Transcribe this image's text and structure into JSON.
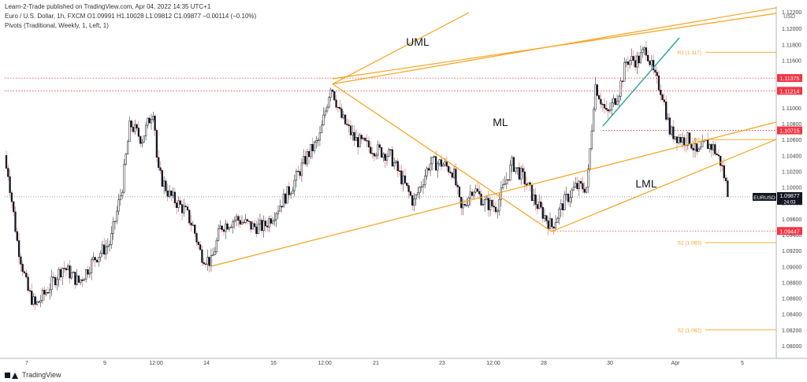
{
  "header": {
    "line1": "Learn-2-Trade published on TradingView.com, Apr 04, 2022 14:35 UTC+1",
    "line2": "Euro / U.S. Dollar, 1h, FXCM  O1.09991 H1.10028 L1.09812 C1.09877 −0.00114 (−0.10%)",
    "line3": "Pivots (Traditional, Weekly, 1, Left, 1)"
  },
  "footer": {
    "brand": "TradingView"
  },
  "chart_data": {
    "type": "candlestick",
    "instrument": "EURUSD",
    "timeframe": "1h",
    "currency_label": "USD",
    "ylim": [
      1.08,
      1.122
    ],
    "x_ticks": [
      "7",
      "9",
      "12:00",
      "14",
      "16",
      "12:00",
      "21",
      "23",
      "12:00",
      "28",
      "30",
      "Apr",
      "5"
    ],
    "y_ticks": [
      1.122,
      1.12,
      1.118,
      1.116,
      1.114,
      1.112,
      1.11,
      1.108,
      1.106,
      1.104,
      1.102,
      1.1,
      1.098,
      1.096,
      1.094,
      1.092,
      1.09,
      1.088,
      1.086,
      1.084,
      1.082,
      1.08
    ],
    "y_tick_labels": [
      "1.12200",
      "1.12000",
      "1.11800",
      "1.11600",
      "1.11400",
      "1.11200",
      "1.11000",
      "1.10800",
      "1.10600",
      "1.10400",
      "1.10200",
      "1.10000",
      "1.09800",
      "1.09600",
      "1.09400",
      "1.09200",
      "1.09000",
      "1.08800",
      "1.08600",
      "1.08400",
      "1.08200",
      "1.08000"
    ],
    "price_label": {
      "value": 1.09877,
      "text": "1.09877",
      "tag": "EURUSD",
      "countdown": "24:03"
    },
    "levels": [
      {
        "value": 1.11375,
        "text": "1.11375"
      },
      {
        "value": 1.11214,
        "text": "1.11214"
      },
      {
        "value": 1.10715,
        "text": "1.10715"
      },
      {
        "value": 1.09447,
        "text": "1.09447"
      }
    ],
    "pivots": [
      {
        "label": "R1 (1.117)",
        "value": 1.117
      },
      {
        "label": "(1.106)",
        "value": 1.106
      },
      {
        "label": "S1 (1.093)",
        "value": 1.093
      },
      {
        "label": "S2 (1.082)",
        "value": 1.082
      }
    ],
    "annotations": [
      {
        "text": "UML"
      },
      {
        "text": "ML"
      },
      {
        "text": "LML"
      }
    ],
    "price_anchors": [
      [
        0,
        1.104
      ],
      [
        10,
        1.102
      ],
      [
        22,
        1.093
      ],
      [
        35,
        1.087
      ],
      [
        45,
        1.085
      ],
      [
        60,
        1.087
      ],
      [
        80,
        1.09
      ],
      [
        100,
        1.088
      ],
      [
        120,
        1.091
      ],
      [
        140,
        1.093
      ],
      [
        155,
        1.1
      ],
      [
        165,
        1.108
      ],
      [
        180,
        1.106
      ],
      [
        195,
        1.11
      ],
      [
        200,
        1.102
      ],
      [
        215,
        1.099
      ],
      [
        235,
        1.097
      ],
      [
        245,
        1.095
      ],
      [
        255,
        1.0915
      ],
      [
        268,
        1.0905
      ],
      [
        280,
        1.095
      ],
      [
        300,
        1.096
      ],
      [
        320,
        1.095
      ],
      [
        335,
        1.095
      ],
      [
        350,
        1.097
      ],
      [
        370,
        1.1
      ],
      [
        390,
        1.104
      ],
      [
        405,
        1.106
      ],
      [
        420,
        1.113
      ],
      [
        432,
        1.109
      ],
      [
        450,
        1.106
      ],
      [
        470,
        1.105
      ],
      [
        495,
        1.104
      ],
      [
        510,
        1.101
      ],
      [
        525,
        1.098
      ],
      [
        545,
        1.103
      ],
      [
        560,
        1.103
      ],
      [
        575,
        1.102
      ],
      [
        585,
        1.097
      ],
      [
        600,
        1.1
      ],
      [
        615,
        1.098
      ],
      [
        630,
        1.0975
      ],
      [
        650,
        1.103
      ],
      [
        665,
        1.101
      ],
      [
        680,
        1.098
      ],
      [
        700,
        1.095
      ],
      [
        715,
        1.098
      ],
      [
        730,
        1.1
      ],
      [
        745,
        1.1
      ],
      [
        755,
        1.113
      ],
      [
        770,
        1.109
      ],
      [
        785,
        1.112
      ],
      [
        795,
        1.116
      ],
      [
        810,
        1.116
      ],
      [
        820,
        1.1175
      ],
      [
        830,
        1.114
      ],
      [
        840,
        1.112
      ],
      [
        850,
        1.107
      ],
      [
        865,
        1.106
      ],
      [
        875,
        1.106
      ],
      [
        885,
        1.104
      ],
      [
        895,
        1.1055
      ],
      [
        905,
        1.105
      ],
      [
        915,
        1.103
      ],
      [
        925,
        1.0988
      ]
    ]
  }
}
